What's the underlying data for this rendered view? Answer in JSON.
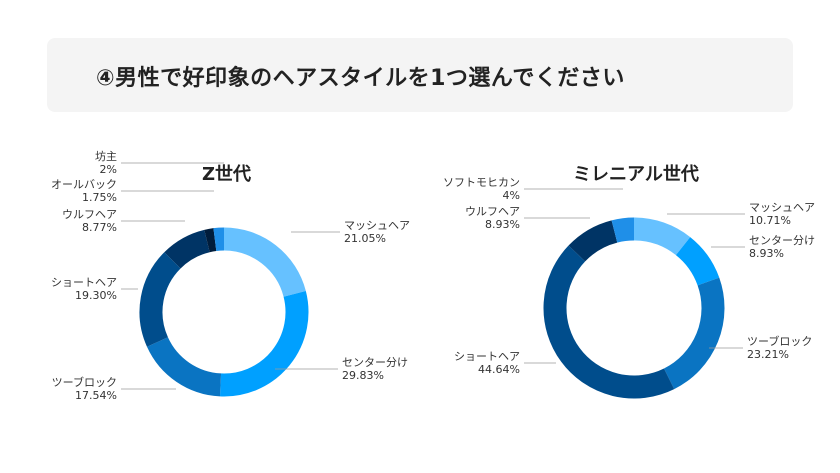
{
  "header": {
    "title": "④男性で好印象のヘアスタイルを1つ選んでください"
  },
  "chart_data": [
    {
      "type": "pie",
      "title": "Z世代",
      "slices": [
        {
          "label": "マッシュヘア",
          "value": 21.05,
          "value_text": "21.05%",
          "color": "#66c1ff"
        },
        {
          "label": "センター分け",
          "value": 29.83,
          "value_text": "29.83%",
          "color": "#00a0ff"
        },
        {
          "label": "ツーブロック",
          "value": 17.54,
          "value_text": "17.54%",
          "color": "#0a74c2"
        },
        {
          "label": "ショートヘア",
          "value": 19.3,
          "value_text": "19.30%",
          "color": "#004d8c"
        },
        {
          "label": "ウルフヘア",
          "value": 8.77,
          "value_text": "8.77%",
          "color": "#003465"
        },
        {
          "label": "オールバック",
          "value": 1.75,
          "value_text": "1.75%",
          "color": "#001d3c"
        },
        {
          "label": "坊主",
          "value": 2.0,
          "value_text": "2%",
          "color": "#1f8fe8"
        }
      ]
    },
    {
      "type": "pie",
      "title": "ミレニアル世代",
      "slices": [
        {
          "label": "マッシュヘア",
          "value": 10.71,
          "value_text": "10.71%",
          "color": "#66c1ff"
        },
        {
          "label": "センター分け",
          "value": 8.93,
          "value_text": "8.93%",
          "color": "#00a0ff"
        },
        {
          "label": "ツーブロック",
          "value": 23.21,
          "value_text": "23.21%",
          "color": "#0a74c2"
        },
        {
          "label": "ショートヘア",
          "value": 44.64,
          "value_text": "44.64%",
          "color": "#004d8c"
        },
        {
          "label": "ウルフヘア",
          "value": 8.93,
          "value_text": "8.93%",
          "color": "#003465"
        },
        {
          "label": "ソフトモヒカン",
          "value": 4,
          "value_text": "4%",
          "color": "#1f8fe8"
        }
      ]
    }
  ]
}
